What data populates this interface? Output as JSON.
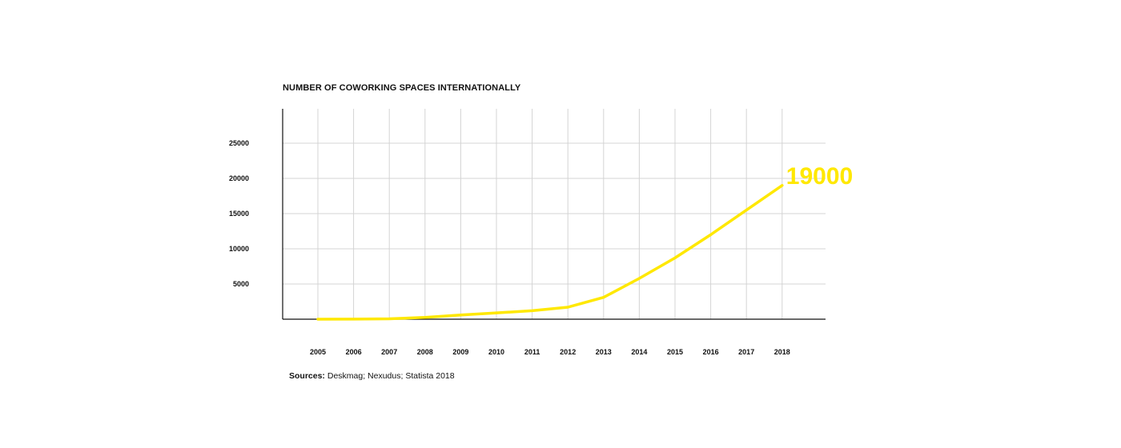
{
  "chart_data": {
    "type": "line",
    "title": "NUMBER OF COWORKING SPACES INTERNATIONALLY",
    "xlabel": "",
    "ylabel": "",
    "x": [
      "2005",
      "2006",
      "2007",
      "2008",
      "2009",
      "2010",
      "2011",
      "2012",
      "2013",
      "2014",
      "2015",
      "2016",
      "2017",
      "2018"
    ],
    "series": [
      {
        "name": "Coworking spaces",
        "values": [
          0,
          10,
          60,
          250,
          600,
          900,
          1200,
          1700,
          3100,
          5800,
          8700,
          12000,
          15500,
          19000
        ]
      }
    ],
    "yticks": [
      5000,
      10000,
      15000,
      20000,
      25000
    ],
    "ylim": [
      0,
      30000
    ],
    "grid": true,
    "annotation": {
      "label": "19000",
      "value": 19000,
      "x": "2018"
    },
    "line_color": "#ffe800",
    "grid_color": "#d4d4d4",
    "axis_color": "#111111",
    "annotation_color": "#ffe800"
  },
  "sources": {
    "label": "Sources:",
    "text": " Deskmag; Nexudus; Statista 2018"
  }
}
